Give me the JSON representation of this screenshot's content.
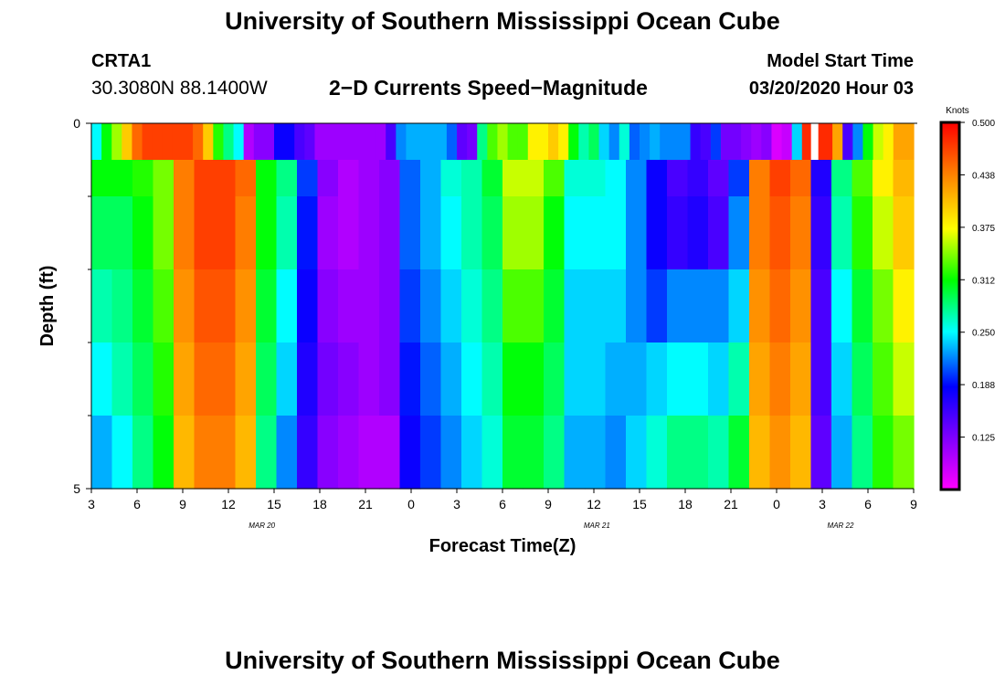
{
  "header": {
    "title": "University of Southern Mississippi Ocean Cube",
    "station_id": "CRTA1",
    "station_coords": "30.3080N 88.1400W",
    "product_title": "2−D Currents Speed−Magnitude",
    "model_start_label": "Model Start Time",
    "model_start_value": "03/20/2020 Hour 03"
  },
  "footer": {
    "title": "University of Southern Mississippi Ocean Cube"
  },
  "chart_data": {
    "type": "heatmap",
    "title": "2−D Currents Speed−Magnitude",
    "xlabel": "Forecast Time(Z)",
    "ylabel": "Depth (ft)",
    "x_tick_labels": [
      "3",
      "6",
      "9",
      "12",
      "15",
      "18",
      "21",
      "0",
      "3",
      "6",
      "9",
      "12",
      "15",
      "18",
      "21",
      "0",
      "3",
      "6",
      "9"
    ],
    "x_date_labels": [
      {
        "label": "MAR 20",
        "hour_index": 10
      },
      {
        "label": "MAR 21",
        "hour_index": 32
      },
      {
        "label": "MAR 22",
        "hour_index": 48
      }
    ],
    "x_range_hours": [
      0,
      54
    ],
    "y_tick_labels": [
      "0",
      "5"
    ],
    "y_range": [
      0,
      5
    ],
    "y_minor_ticks": [
      1,
      2,
      3,
      4
    ],
    "depth_rows": [
      0,
      1,
      2,
      3,
      4
    ],
    "colorbar": {
      "unit": "Knots",
      "range": [
        0.0625,
        0.5
      ],
      "tick_labels": [
        "0.500",
        "0.438",
        "0.375",
        "0.312",
        "0.250",
        "0.188",
        "0.125"
      ],
      "tick_values": [
        0.5,
        0.4375,
        0.375,
        0.3125,
        0.25,
        0.1875,
        0.125
      ]
    },
    "top_speed_knots": [
      0.25,
      0.31,
      0.35,
      0.4,
      0.45,
      0.47,
      0.47,
      0.47,
      0.47,
      0.47,
      0.45,
      0.4,
      0.32,
      0.28,
      0.25,
      0.1,
      0.12,
      0.12,
      0.18,
      0.18,
      0.15,
      0.14,
      0.11,
      0.11,
      0.11,
      0.11,
      0.11,
      0.11,
      0.11,
      0.15,
      0.22,
      0.23,
      0.23,
      0.23,
      0.23,
      0.21,
      0.14,
      0.13,
      0.28,
      0.33,
      0.35,
      0.33,
      0.33,
      0.38,
      0.38,
      0.4,
      0.38,
      0.31,
      0.27,
      0.29,
      0.24,
      0.22,
      0.26,
      0.21,
      0.22,
      0.23,
      0.22,
      0.22,
      0.22,
      0.16,
      0.15,
      0.2,
      0.13,
      0.13,
      0.12,
      0.11,
      0.12,
      0.08,
      0.09,
      0.24,
      0.48,
      0.48,
      0.48,
      0.42,
      0.15,
      0.22,
      0.31,
      0.36,
      0.38,
      0.42,
      0.42
    ],
    "top_row_gap_hour_index": 47.5,
    "depth_profile_knots": [
      [
        0.31,
        0.31,
        0.32,
        0.34,
        0.44,
        0.47,
        0.47,
        0.45,
        0.31,
        0.28,
        0.2,
        0.12,
        0.1,
        0.11,
        0.12,
        0.21,
        0.23,
        0.26,
        0.27,
        0.3,
        0.36,
        0.36,
        0.33,
        0.26,
        0.26,
        0.25,
        0.22,
        0.18,
        0.15,
        0.16,
        0.14,
        0.2,
        0.44,
        0.47,
        0.45,
        0.17,
        0.28,
        0.33,
        0.38,
        0.41
      ],
      [
        0.29,
        0.29,
        0.31,
        0.34,
        0.44,
        0.47,
        0.47,
        0.44,
        0.31,
        0.27,
        0.19,
        0.11,
        0.1,
        0.11,
        0.12,
        0.21,
        0.23,
        0.25,
        0.27,
        0.29,
        0.35,
        0.35,
        0.31,
        0.25,
        0.25,
        0.25,
        0.22,
        0.18,
        0.16,
        0.17,
        0.15,
        0.22,
        0.44,
        0.46,
        0.44,
        0.16,
        0.27,
        0.32,
        0.36,
        0.4
      ],
      [
        0.27,
        0.28,
        0.3,
        0.33,
        0.43,
        0.46,
        0.46,
        0.43,
        0.3,
        0.25,
        0.18,
        0.12,
        0.11,
        0.11,
        0.12,
        0.2,
        0.22,
        0.24,
        0.26,
        0.28,
        0.33,
        0.33,
        0.3,
        0.24,
        0.24,
        0.24,
        0.22,
        0.2,
        0.22,
        0.22,
        0.22,
        0.24,
        0.43,
        0.45,
        0.43,
        0.15,
        0.25,
        0.3,
        0.34,
        0.38
      ],
      [
        0.25,
        0.27,
        0.29,
        0.32,
        0.42,
        0.45,
        0.45,
        0.42,
        0.29,
        0.24,
        0.17,
        0.13,
        0.12,
        0.11,
        0.12,
        0.19,
        0.21,
        0.23,
        0.25,
        0.27,
        0.31,
        0.31,
        0.29,
        0.24,
        0.24,
        0.23,
        0.23,
        0.24,
        0.25,
        0.25,
        0.24,
        0.27,
        0.42,
        0.44,
        0.42,
        0.15,
        0.24,
        0.29,
        0.33,
        0.36
      ],
      [
        0.23,
        0.25,
        0.28,
        0.31,
        0.41,
        0.44,
        0.44,
        0.41,
        0.28,
        0.22,
        0.16,
        0.12,
        0.11,
        0.1,
        0.1,
        0.18,
        0.2,
        0.22,
        0.24,
        0.26,
        0.3,
        0.3,
        0.28,
        0.23,
        0.23,
        0.22,
        0.24,
        0.26,
        0.28,
        0.28,
        0.27,
        0.3,
        0.41,
        0.43,
        0.41,
        0.14,
        0.23,
        0.28,
        0.32,
        0.34
      ]
    ]
  }
}
